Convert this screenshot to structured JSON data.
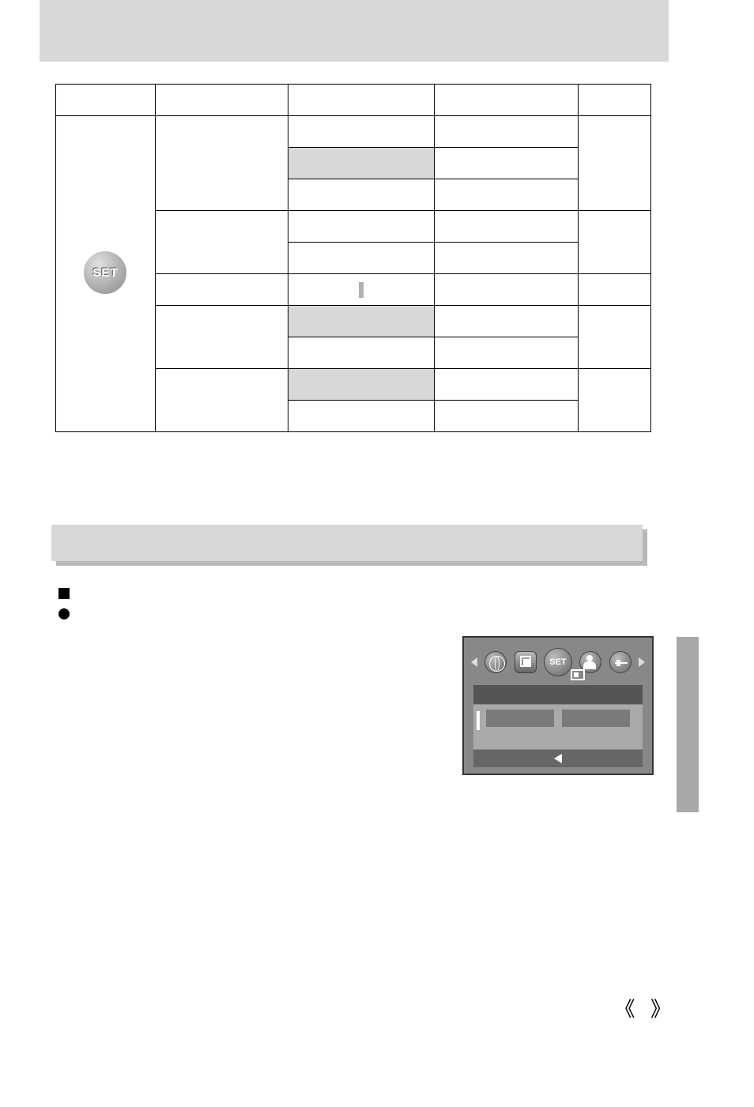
{
  "header": {
    "title": ""
  },
  "table": {
    "headers": [
      "",
      "",
      "",
      "",
      ""
    ],
    "icon_label": "SET",
    "rows": [
      {
        "c1": "",
        "c2": "",
        "c3": "",
        "c4": "",
        "c5": "",
        "shaded": false
      },
      {
        "c1": "",
        "c2": "",
        "c3": "",
        "c4": "",
        "c5": "",
        "shaded": true
      },
      {
        "c1": "",
        "c2": "",
        "c3": "",
        "c4": "",
        "c5": "",
        "shaded": false
      },
      {
        "c1": "",
        "c2": "",
        "c3": "",
        "c4": "",
        "c5": "",
        "shaded": false
      },
      {
        "c1": "",
        "c2": "",
        "c3": "",
        "c4": "",
        "c5": "",
        "shaded": false
      },
      {
        "c1": "",
        "c2": "",
        "c3": "",
        "c4": "",
        "c5": "",
        "shaded": false,
        "cursor": true
      },
      {
        "c1": "",
        "c2": "",
        "c3": "",
        "c4": "",
        "c5": "",
        "shaded": true
      },
      {
        "c1": "",
        "c2": "",
        "c3": "",
        "c4": "",
        "c5": "",
        "shaded": false
      },
      {
        "c1": "",
        "c2": "",
        "c3": "",
        "c4": "",
        "c5": "",
        "shaded": true
      },
      {
        "c1": "",
        "c2": "",
        "c3": "",
        "c4": "",
        "c5": "",
        "shaded": false
      }
    ]
  },
  "section": {
    "title": ""
  },
  "bullets": {
    "item1": "",
    "item2": ""
  },
  "screen": {
    "set_label": "SET",
    "background_color": "#888888",
    "toolbar_colors": {
      "circle_bg": "#999999",
      "arrow_color": "#dddddd"
    }
  },
  "page_marks": {
    "left_angle": "《",
    "right_angle": "》"
  },
  "colors": {
    "band_bg": "#d8d8d8",
    "shadow_bg": "#b8b8b8",
    "side_tab": "#a8a8a8",
    "screen_dark": "#555555",
    "screen_mid": "#aaaaaa"
  }
}
